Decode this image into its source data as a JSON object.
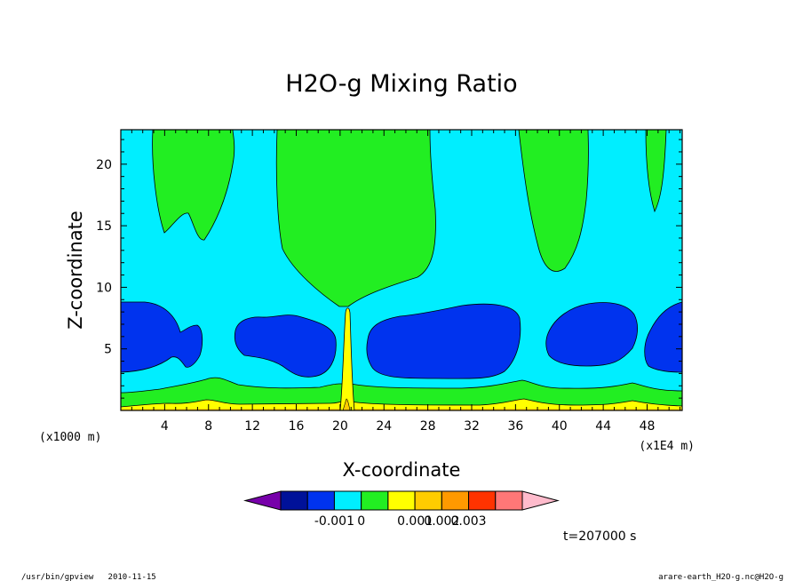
{
  "chart_data": {
    "type": "heatmap",
    "title": "H2O-g Mixing Ratio",
    "xlabel": "X-coordinate",
    "ylabel": "Z-coordinate",
    "x_scale_note": "(x1E4 m)",
    "y_scale_note": "(x1000 m)",
    "x_ticks": [
      "4",
      "8",
      "12",
      "16",
      "20",
      "24",
      "28",
      "32",
      "36",
      "40",
      "44",
      "48"
    ],
    "y_ticks": [
      "5",
      "10",
      "15",
      "20"
    ],
    "xlim": [
      0,
      51.2
    ],
    "ylim": [
      0,
      22.8
    ],
    "time_label": "t=207000 s",
    "colorbar": {
      "colors": [
        "#7700aa",
        "#001199",
        "#0033ee",
        "#00eeff",
        "#22ee22",
        "#ffff00",
        "#ffcc00",
        "#ff9900",
        "#ff3300",
        "#ff7777",
        "#ffbbcc"
      ],
      "labels": [
        "-0.001",
        "0",
        "0.001",
        "0.002",
        "0.003"
      ]
    },
    "regions": {
      "green_columns": [
        {
          "x": [
            2.8,
            10.2
          ],
          "z_bottom": 13.8
        },
        {
          "x": [
            14.2,
            28.8
          ],
          "z_bottom": 10.0
        },
        {
          "x": [
            36.8,
            42.4
          ],
          "z_bottom": 11.2
        },
        {
          "x": [
            47.2,
            49.6
          ],
          "z_bottom": 16.3
        }
      ],
      "blue_cells": [
        {
          "x": [
            0,
            7.4
          ],
          "z": [
            3.2,
            8.8
          ]
        },
        {
          "x": [
            10.3,
            19.8
          ],
          "z": [
            3.2,
            7.8
          ]
        },
        {
          "x": [
            22.3,
            36.4
          ],
          "z": [
            2.8,
            8.6
          ]
        },
        {
          "x": [
            38.8,
            47.0
          ],
          "z": [
            3.2,
            8.6
          ]
        },
        {
          "x": [
            47.2,
            51.2
          ],
          "z": [
            3.2,
            8.8
          ]
        }
      ]
    }
  },
  "footer": {
    "left": "/usr/bin/gpview   2010-11-15",
    "right": "arare-earth_H2O-g.nc@H2O-g"
  }
}
